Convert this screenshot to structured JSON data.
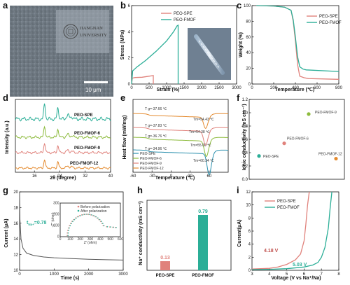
{
  "colors": {
    "spe": "#E0827C",
    "fmof": "#2BAE97",
    "fmof6": "#2BAE97",
    "fmof9": "#8DBB3D",
    "fmof12": "#E48A2E",
    "spe_d": "#E0827C",
    "spe_e": "#2A8FAD"
  },
  "panels": {
    "a": {
      "letter": "a",
      "logo_line1": "JIANGNAN",
      "logo_line2": "UNIVERSITY",
      "scale_bar": "10 μm"
    },
    "b": {
      "letter": "b"
    },
    "c": {
      "letter": "c"
    },
    "d": {
      "letter": "d"
    },
    "e": {
      "letter": "e"
    },
    "f": {
      "letter": "f"
    },
    "g": {
      "letter": "g",
      "transference_label": "t",
      "transference_sub": "Na+",
      "transference_value": "=0.78"
    },
    "h": {
      "letter": "h"
    },
    "i": {
      "letter": "i",
      "onset_spe": "4.18 V",
      "onset_fmof": "5.03 V"
    }
  },
  "chart_data": [
    {
      "id": "b",
      "type": "line",
      "xlabel": "Strain (%)",
      "ylabel": "Stress (MPa)",
      "xlim": [
        0,
        3000
      ],
      "ylim": [
        0,
        6
      ],
      "xticks": [
        "0",
        "500",
        "1000",
        "1500",
        "2000",
        "2500",
        "3000"
      ],
      "yticks": [
        "0",
        "2",
        "4",
        "6"
      ],
      "series": [
        {
          "name": "PEO-SPE",
          "x": [
            0,
            20,
            100,
            300,
            500,
            620,
            620
          ],
          "y": [
            0,
            0.45,
            0.5,
            0.52,
            0.6,
            0.65,
            0
          ]
        },
        {
          "name": "PEO-FMOF",
          "x": [
            0,
            30,
            150,
            400,
            700,
            1000,
            1200,
            1300,
            1330,
            1330
          ],
          "y": [
            0,
            1.0,
            1.3,
            1.8,
            2.5,
            3.3,
            4.0,
            4.45,
            4.5,
            0
          ]
        }
      ]
    },
    {
      "id": "c",
      "type": "line",
      "xlabel": "Temperature (℃)",
      "ylabel": "Weight (%)",
      "xlim": [
        0,
        800
      ],
      "ylim": [
        0,
        100
      ],
      "xticks": [
        "0",
        "200",
        "400",
        "600",
        "800"
      ],
      "yticks": [
        "0",
        "20",
        "40",
        "60",
        "80",
        "100"
      ],
      "series": [
        {
          "name": "PEO-SPE",
          "x": [
            40,
            200,
            300,
            360,
            380,
            400,
            420,
            440,
            480,
            520,
            800
          ],
          "y": [
            100,
            99.5,
            98,
            94,
            80,
            55,
            25,
            10,
            8,
            7,
            6
          ]
        },
        {
          "name": "PEO-FMOF",
          "x": [
            40,
            200,
            300,
            360,
            380,
            400,
            420,
            440,
            470,
            500,
            800
          ],
          "y": [
            100,
            99.5,
            98,
            94,
            82,
            60,
            35,
            22,
            19,
            18,
            16
          ]
        }
      ]
    },
    {
      "id": "d",
      "type": "line",
      "xlabel": "2θ (degree)",
      "ylabel": "Intensity (a.u.)",
      "xlim": [
        10,
        40
      ],
      "xticks": [
        "16",
        "24",
        "32",
        "40"
      ],
      "series": [
        {
          "name": "PEO-SPE",
          "offset": 3
        },
        {
          "name": "PEO-FMOF-6",
          "offset": 2
        },
        {
          "name": "PEO-FMOF-9",
          "offset": 1
        },
        {
          "name": "PEO-FMOF-12",
          "offset": 0
        }
      ],
      "peaks": [
        19.2,
        23.4
      ]
    },
    {
      "id": "e",
      "type": "line",
      "xlabel": "Temperature (℃)",
      "ylabel": "Heat flow (mW/mg)",
      "xlim": [
        -60,
        90
      ],
      "xticks": [
        "-60",
        "-30",
        "0",
        "30",
        "60"
      ],
      "series": [
        {
          "name": "PEO-SPE",
          "tg": "T g=-34.96 ℃",
          "tm": "Tm=60.34 ℃"
        },
        {
          "name": "PEO-FMOF-6",
          "tg": "T g=-36.76 ℃",
          "tm": "Tm=55.60 ℃"
        },
        {
          "name": "PEO-FMOF-9",
          "tg": "T g=-37.83 ℃",
          "tm": "Tm=54.38 ℃"
        },
        {
          "name": "PEO-FMOF-12",
          "tg": "T g=-37.66 ℃",
          "tm": "Tm=54.43 ℃"
        }
      ]
    },
    {
      "id": "f",
      "type": "scatter",
      "ylabel": "Ionic conductivity (mS cm⁻¹)",
      "ylim": [
        0,
        1.2
      ],
      "yticks": [
        "0.0",
        "0.2",
        "0.4",
        "0.6",
        "0.8",
        "1.0",
        "1.2"
      ],
      "points": [
        {
          "label": "PEO-SPE",
          "value": 0.35
        },
        {
          "label": "PEO-FMOF-6",
          "value": 0.54
        },
        {
          "label": "PEO-FMOF-9",
          "value": 0.98
        },
        {
          "label": "PEO-FMOF-12",
          "value": 0.31
        }
      ]
    },
    {
      "id": "g",
      "type": "line",
      "xlabel": "Time (s)",
      "ylabel": "Current (μA)",
      "xlim": [
        0,
        3000
      ],
      "ylim": [
        10,
        20
      ],
      "xticks": [
        "0",
        "1000",
        "2000",
        "3000"
      ],
      "yticks": [
        "10",
        "12",
        "14",
        "16",
        "18",
        "20"
      ],
      "series": [
        {
          "name": "current",
          "x": [
            0,
            10,
            40,
            100,
            200,
            400,
            700,
            1000,
            1500,
            2000,
            2500,
            3000
          ],
          "y": [
            19.8,
            16.5,
            14.0,
            12.8,
            12.2,
            11.9,
            11.7,
            11.6,
            11.5,
            11.4,
            11.35,
            11.3
          ]
        }
      ],
      "inset": {
        "xlabel": "Z' (ohm)",
        "ylabel": "-Z'' (ohm)",
        "xticks": [
          "0",
          "100",
          "200",
          "300",
          "400",
          "500",
          "600"
        ],
        "yticks": [
          "0",
          "100",
          "200",
          "300"
        ],
        "legend": [
          "Before polarization",
          "After polarization"
        ]
      }
    },
    {
      "id": "h",
      "type": "bar",
      "ylabel": "Na⁺ conductivity (mS cm⁻¹)",
      "categories": [
        "PEO-SPE",
        "PEO-FMOF"
      ],
      "values": [
        0.13,
        0.79
      ],
      "value_labels": [
        "0.13",
        "0.79"
      ]
    },
    {
      "id": "i",
      "type": "line",
      "xlabel": "Voltage (V vs Na⁺/Na)",
      "ylabel": "Current(μA)",
      "xlim": [
        3,
        8
      ],
      "ylim": [
        0,
        12
      ],
      "xticks": [
        "3",
        "4",
        "5",
        "6",
        "7",
        "8"
      ],
      "yticks": [
        "0",
        "2",
        "4",
        "6",
        "8",
        "10",
        "12"
      ],
      "series": [
        {
          "name": "PEO-SPE",
          "x": [
            3,
            4,
            4.5,
            5,
            5.5,
            5.8,
            6.0,
            6.1,
            6.2,
            6.3
          ],
          "y": [
            0.2,
            0.3,
            0.5,
            0.9,
            1.6,
            2.5,
            4.5,
            7,
            10,
            12.5
          ]
        },
        {
          "name": "PEO-FMOF",
          "x": [
            3,
            4,
            5,
            6,
            6.5,
            6.8,
            7.0,
            7.2,
            7.4,
            7.5,
            7.6
          ],
          "y": [
            0.1,
            0.15,
            0.25,
            0.5,
            0.8,
            1.2,
            2.0,
            3.5,
            6.5,
            9.5,
            12.5
          ]
        }
      ]
    }
  ]
}
